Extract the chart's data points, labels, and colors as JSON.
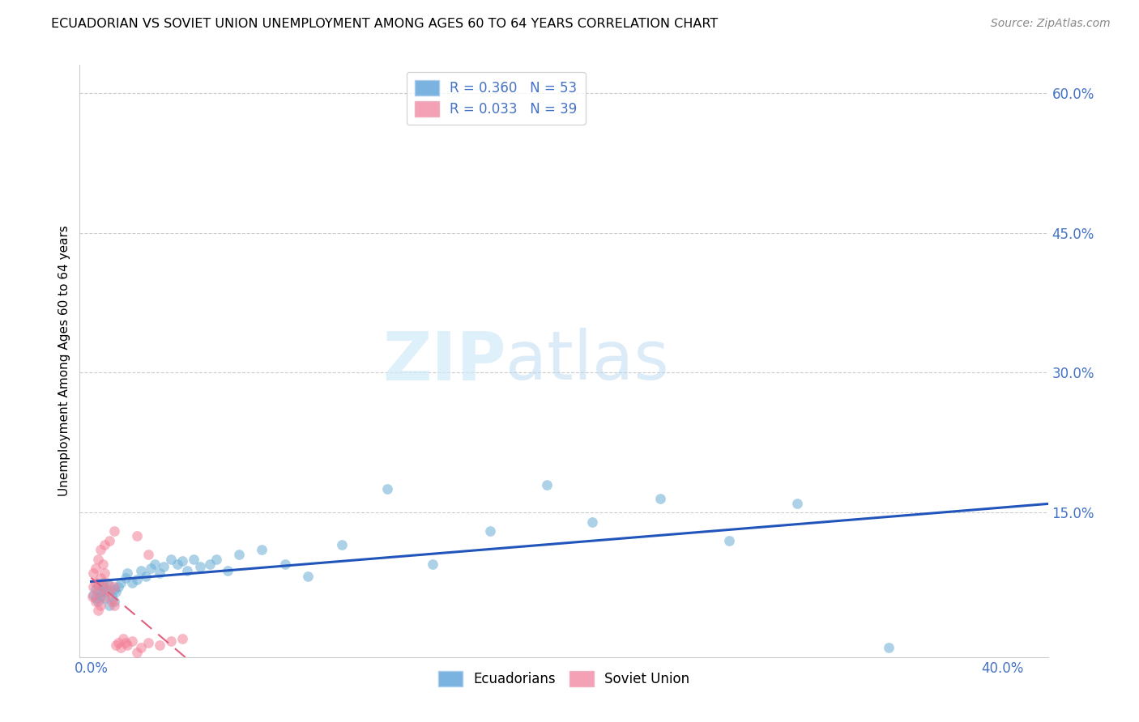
{
  "title": "ECUADORIAN VS SOVIET UNION UNEMPLOYMENT AMONG AGES 60 TO 64 YEARS CORRELATION CHART",
  "source": "Source: ZipAtlas.com",
  "ylabel_label": "Unemployment Among Ages 60 to 64 years",
  "xlim": [
    -0.005,
    0.42
  ],
  "ylim": [
    -0.005,
    0.63
  ],
  "x_tick_positions": [
    0.0,
    0.4
  ],
  "x_tick_labels": [
    "0.0%",
    "40.0%"
  ],
  "y_tick_positions": [
    0.15,
    0.3,
    0.45,
    0.6
  ],
  "y_tick_labels": [
    "15.0%",
    "30.0%",
    "45.0%",
    "60.0%"
  ],
  "legend_entry1_color": "#7ab3e0",
  "legend_entry2_color": "#f4a0b5",
  "bottom_legend1": "Ecuadorians",
  "bottom_legend2": "Soviet Union",
  "watermark_zip": "ZIP",
  "watermark_atlas": "atlas",
  "blue_color": "#6baed6",
  "pink_color": "#f48098",
  "blue_line_color": "#2255bb",
  "pink_line_color": "#e06080",
  "tick_color": "#4472c4",
  "blue_R": 0.36,
  "blue_N": 53,
  "pink_R": 0.033,
  "pink_N": 39,
  "title_fontsize": 11.5,
  "source_fontsize": 10,
  "axis_label_fontsize": 11,
  "tick_fontsize": 12,
  "legend_fontsize": 12,
  "ecuadorians_x": [
    0.001,
    0.002,
    0.002,
    0.003,
    0.003,
    0.004,
    0.004,
    0.005,
    0.005,
    0.006,
    0.006,
    0.007,
    0.008,
    0.008,
    0.009,
    0.01,
    0.01,
    0.011,
    0.012,
    0.013,
    0.015,
    0.016,
    0.018,
    0.02,
    0.022,
    0.024,
    0.026,
    0.028,
    0.03,
    0.032,
    0.035,
    0.038,
    0.04,
    0.042,
    0.045,
    0.048,
    0.052,
    0.055,
    0.06,
    0.065,
    0.075,
    0.085,
    0.095,
    0.11,
    0.13,
    0.15,
    0.175,
    0.2,
    0.22,
    0.25,
    0.28,
    0.31,
    0.35
  ],
  "ecuadorians_y": [
    0.062,
    0.058,
    0.068,
    0.072,
    0.055,
    0.065,
    0.06,
    0.07,
    0.075,
    0.058,
    0.065,
    0.068,
    0.05,
    0.072,
    0.06,
    0.068,
    0.055,
    0.065,
    0.07,
    0.075,
    0.08,
    0.085,
    0.075,
    0.078,
    0.088,
    0.082,
    0.09,
    0.095,
    0.085,
    0.092,
    0.1,
    0.095,
    0.098,
    0.088,
    0.1,
    0.092,
    0.095,
    0.1,
    0.088,
    0.105,
    0.11,
    0.095,
    0.082,
    0.115,
    0.175,
    0.095,
    0.13,
    0.18,
    0.14,
    0.165,
    0.12,
    0.16,
    0.005
  ],
  "soviet_x": [
    0.0005,
    0.001,
    0.001,
    0.002,
    0.002,
    0.002,
    0.003,
    0.003,
    0.003,
    0.004,
    0.004,
    0.005,
    0.005,
    0.006,
    0.006,
    0.007,
    0.008,
    0.009,
    0.01,
    0.01,
    0.011,
    0.012,
    0.013,
    0.014,
    0.015,
    0.016,
    0.018,
    0.02,
    0.022,
    0.025,
    0.03,
    0.035,
    0.04,
    0.02,
    0.025,
    0.01,
    0.008,
    0.006,
    0.004
  ],
  "soviet_y": [
    0.06,
    0.07,
    0.085,
    0.055,
    0.075,
    0.09,
    0.045,
    0.065,
    0.1,
    0.05,
    0.08,
    0.07,
    0.095,
    0.06,
    0.085,
    0.075,
    0.065,
    0.055,
    0.07,
    0.05,
    0.008,
    0.01,
    0.005,
    0.015,
    0.01,
    0.008,
    0.012,
    0.0,
    0.005,
    0.01,
    0.008,
    0.012,
    0.015,
    0.125,
    0.105,
    0.13,
    0.12,
    0.115,
    0.11
  ]
}
